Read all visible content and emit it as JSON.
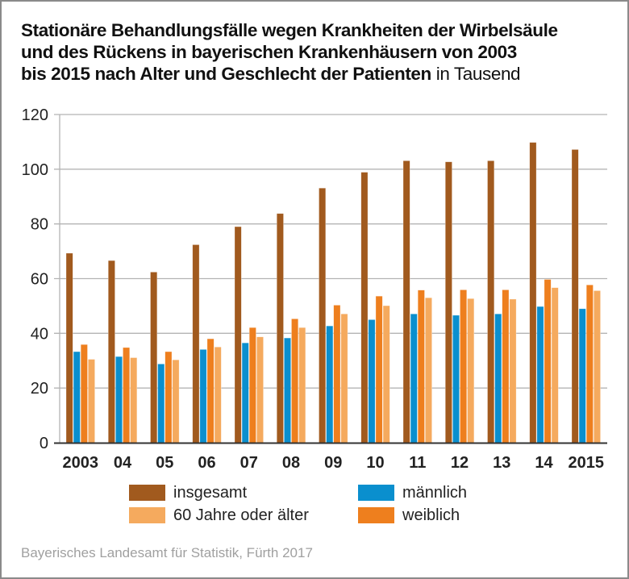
{
  "title": {
    "bold": "Stationäre Behandlungsfälle wegen Krankheiten der Wirbelsäule und des Rückens in bayerischen Krankenhäusern von 2003 bis 2015 nach Alter und Geschlecht der Patienten",
    "line1": "Stationäre Behandlungsfälle wegen Krankheiten der Wirbelsäule",
    "line2": "und des Rückens in bayerischen Krankenhäusern von 2003",
    "line3": "bis 2015 nach Alter und Geschlecht der Patienten",
    "unit": "in Tausend"
  },
  "source": "Bayerisches Landesamt für Statistik, Fürth 2017",
  "legend": [
    {
      "key": "insgesamt",
      "label": "insgesamt",
      "color": "#a15a1e"
    },
    {
      "key": "maennlich",
      "label": "männlich",
      "color": "#0a8fce"
    },
    {
      "key": "ab60",
      "label": "60 Jahre oder älter",
      "color": "#f5aa5e"
    },
    {
      "key": "weiblich",
      "label": "weiblich",
      "color": "#ee7f1e"
    }
  ],
  "chart_data": {
    "type": "bar",
    "title": "Stationäre Behandlungsfälle wegen Krankheiten der Wirbelsäule und des Rückens in bayerischen Krankenhäusern von 2003 bis 2015 nach Alter und Geschlecht der Patienten in Tausend",
    "xlabel": "",
    "ylabel": "",
    "ylim": [
      0,
      120
    ],
    "yticks": [
      0,
      20,
      40,
      60,
      80,
      100,
      120
    ],
    "grid": true,
    "legend_position": "bottom",
    "categories": [
      "2003",
      "04",
      "05",
      "06",
      "07",
      "08",
      "09",
      "10",
      "11",
      "12",
      "13",
      "14",
      "2015"
    ],
    "series": [
      {
        "name": "insgesamt",
        "color": "#a15a1e",
        "values": [
          69.3,
          66.6,
          62.4,
          72.4,
          79.0,
          83.8,
          93.1,
          98.9,
          103.1,
          102.7,
          103.1,
          109.8,
          107.2
        ]
      },
      {
        "name": "männlich",
        "color": "#0a8fce",
        "values": [
          33.3,
          31.5,
          28.8,
          34.1,
          36.5,
          38.3,
          42.7,
          45.0,
          47.1,
          46.6,
          47.1,
          49.8,
          49.0
        ]
      },
      {
        "name": "weiblich",
        "color": "#ee7f1e",
        "values": [
          35.9,
          34.8,
          33.3,
          38.0,
          42.1,
          45.3,
          50.3,
          53.6,
          55.8,
          55.9,
          55.9,
          59.7,
          57.7
        ]
      },
      {
        "name": "60 Jahre oder älter",
        "color": "#f5aa5e",
        "values": [
          30.5,
          31.1,
          30.3,
          35.0,
          38.7,
          42.1,
          47.1,
          50.1,
          53.0,
          52.7,
          52.5,
          56.7,
          55.6
        ]
      }
    ]
  }
}
